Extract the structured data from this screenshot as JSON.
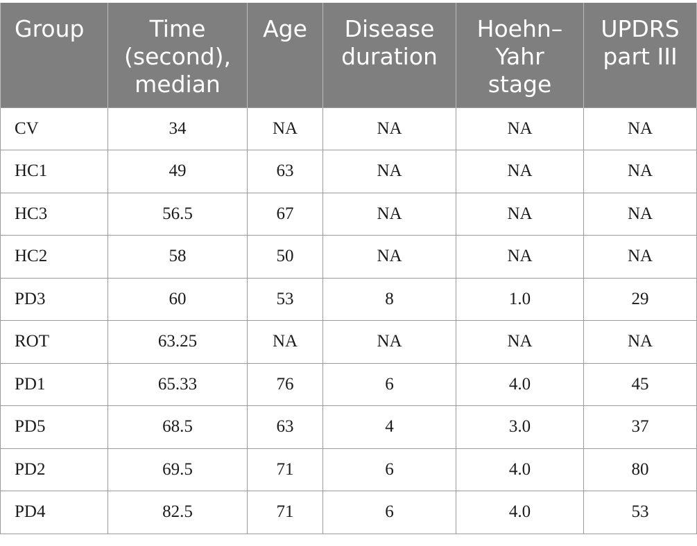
{
  "table": {
    "headers": [
      "Group",
      "Time (second), median",
      "Age",
      "Disease duration",
      "Hoehn– Yahr stage",
      "UPDRS part III"
    ],
    "header_lines": [
      [
        "Group"
      ],
      [
        "Time",
        "(second),",
        "median"
      ],
      [
        "Age"
      ],
      [
        "Disease",
        "duration"
      ],
      [
        "Hoehn–",
        "Yahr",
        "stage"
      ],
      [
        "UPDRS",
        "part III"
      ]
    ],
    "rows": [
      [
        "CV",
        "34",
        "NA",
        "NA",
        "NA",
        "NA"
      ],
      [
        "HC1",
        "49",
        "63",
        "NA",
        "NA",
        "NA"
      ],
      [
        "HC3",
        "56.5",
        "67",
        "NA",
        "NA",
        "NA"
      ],
      [
        "HC2",
        "58",
        "50",
        "NA",
        "NA",
        "NA"
      ],
      [
        "PD3",
        "60",
        "53",
        "8",
        "1.0",
        "29"
      ],
      [
        "ROT",
        "63.25",
        "NA",
        "NA",
        "NA",
        "NA"
      ],
      [
        "PD1",
        "65.33",
        "76",
        "6",
        "4.0",
        "45"
      ],
      [
        "PD5",
        "68.5",
        "63",
        "4",
        "3.0",
        "37"
      ],
      [
        "PD2",
        "69.5",
        "71",
        "6",
        "4.0",
        "80"
      ],
      [
        "PD4",
        "82.5",
        "71",
        "6",
        "4.0",
        "53"
      ]
    ]
  },
  "colors": {
    "header_background": "#7f7f7f",
    "header_text": "#ffffff",
    "grid_line": "#9a9a9a"
  }
}
